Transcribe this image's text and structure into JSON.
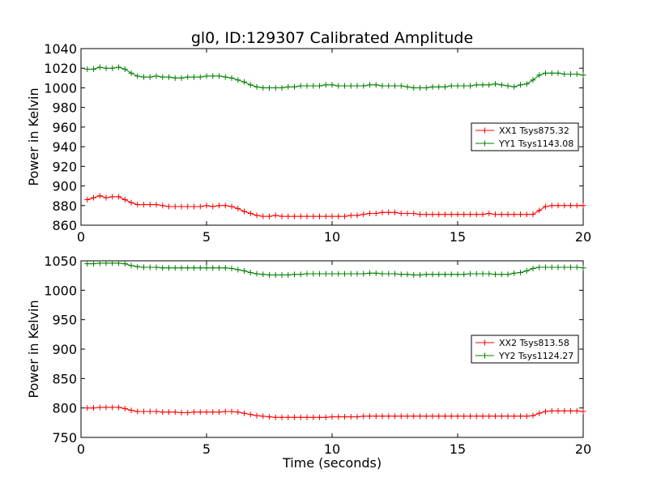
{
  "chart_data": {
    "title": "gl0, ID:129307 Calibrated Amplitude",
    "colors": {
      "xx": "#ff0000",
      "yy": "#008000"
    },
    "panels": [
      {
        "type": "line",
        "ylabel": "Power in Kelvin",
        "xlabel": "",
        "xlim": [
          0,
          20
        ],
        "ylim": [
          860,
          1040
        ],
        "xticks": [
          0,
          5,
          10,
          15,
          20
        ],
        "yticks": [
          860,
          880,
          900,
          920,
          940,
          960,
          980,
          1000,
          1020,
          1040
        ],
        "legend_position": "center-right",
        "series": [
          {
            "name": "XX1 Tsys875.32",
            "color_key": "xx",
            "x": [
              0.25,
              0.5,
              0.75,
              1.0,
              1.25,
              1.5,
              1.75,
              2.0,
              2.25,
              2.5,
              2.75,
              3.0,
              3.25,
              3.5,
              3.75,
              4.0,
              4.25,
              4.5,
              4.75,
              5.0,
              5.25,
              5.5,
              5.75,
              6.0,
              6.25,
              6.5,
              6.75,
              7.0,
              7.25,
              7.5,
              7.75,
              8.0,
              8.25,
              8.5,
              8.75,
              9.0,
              9.25,
              9.5,
              9.75,
              10.0,
              10.25,
              10.5,
              10.75,
              11.0,
              11.25,
              11.5,
              11.75,
              12.0,
              12.25,
              12.5,
              12.75,
              13.0,
              13.25,
              13.5,
              13.75,
              14.0,
              14.25,
              14.5,
              14.75,
              15.0,
              15.25,
              15.5,
              15.75,
              16.0,
              16.25,
              16.5,
              16.75,
              17.0,
              17.25,
              17.5,
              17.75,
              18.0,
              18.25,
              18.5,
              18.75,
              19.0,
              19.25,
              19.5,
              19.75,
              20.0
            ],
            "y": [
              886,
              888,
              890,
              888,
              889,
              889,
              886,
              883,
              881,
              881,
              881,
              881,
              880,
              879,
              879,
              879,
              879,
              879,
              879,
              880,
              879,
              880,
              880,
              879,
              877,
              874,
              872,
              870,
              869,
              869,
              870,
              869,
              869,
              869,
              869,
              869,
              869,
              869,
              869,
              869,
              869,
              869,
              870,
              870,
              871,
              872,
              872,
              873,
              873,
              873,
              872,
              872,
              872,
              871,
              871,
              871,
              871,
              871,
              871,
              871,
              871,
              871,
              871,
              871,
              872,
              871,
              871,
              871,
              871,
              871,
              871,
              871,
              875,
              879,
              880,
              880,
              880,
              880,
              880,
              880
            ]
          },
          {
            "name": "YY1 Tsys1143.08",
            "color_key": "yy",
            "x": [
              0.25,
              0.5,
              0.75,
              1.0,
              1.25,
              1.5,
              1.75,
              2.0,
              2.25,
              2.5,
              2.75,
              3.0,
              3.25,
              3.5,
              3.75,
              4.0,
              4.25,
              4.5,
              4.75,
              5.0,
              5.25,
              5.5,
              5.75,
              6.0,
              6.25,
              6.5,
              6.75,
              7.0,
              7.25,
              7.5,
              7.75,
              8.0,
              8.25,
              8.5,
              8.75,
              9.0,
              9.25,
              9.5,
              9.75,
              10.0,
              10.25,
              10.5,
              10.75,
              11.0,
              11.25,
              11.5,
              11.75,
              12.0,
              12.25,
              12.5,
              12.75,
              13.0,
              13.25,
              13.5,
              13.75,
              14.0,
              14.25,
              14.5,
              14.75,
              15.0,
              15.25,
              15.5,
              15.75,
              16.0,
              16.25,
              16.5,
              16.75,
              17.0,
              17.25,
              17.5,
              17.75,
              18.0,
              18.25,
              18.5,
              18.75,
              19.0,
              19.25,
              19.5,
              19.75,
              20.0
            ],
            "y": [
              1019,
              1019,
              1021,
              1020,
              1020,
              1021,
              1019,
              1015,
              1012,
              1011,
              1011,
              1012,
              1011,
              1011,
              1010,
              1010,
              1011,
              1011,
              1011,
              1012,
              1012,
              1012,
              1011,
              1010,
              1008,
              1006,
              1003,
              1001,
              1000,
              1000,
              1000,
              1000,
              1001,
              1001,
              1002,
              1002,
              1002,
              1002,
              1003,
              1003,
              1002,
              1002,
              1002,
              1002,
              1002,
              1003,
              1003,
              1002,
              1002,
              1002,
              1002,
              1001,
              1000,
              1000,
              1000,
              1001,
              1001,
              1001,
              1002,
              1002,
              1002,
              1002,
              1003,
              1003,
              1003,
              1004,
              1003,
              1002,
              1001,
              1003,
              1004,
              1008,
              1013,
              1015,
              1015,
              1015,
              1014,
              1014,
              1014,
              1013
            ]
          }
        ]
      },
      {
        "type": "line",
        "ylabel": "Power in Kelvin",
        "xlabel": "Time (seconds)",
        "xlim": [
          0,
          20
        ],
        "ylim": [
          750,
          1050
        ],
        "xticks": [
          0,
          5,
          10,
          15,
          20
        ],
        "yticks": [
          750,
          800,
          850,
          900,
          950,
          1000,
          1050
        ],
        "legend_position": "center-right",
        "series": [
          {
            "name": "XX2 Tsys813.58",
            "color_key": "xx",
            "x": [
              0.25,
              0.5,
              0.75,
              1.0,
              1.25,
              1.5,
              1.75,
              2.0,
              2.25,
              2.5,
              2.75,
              3.0,
              3.25,
              3.5,
              3.75,
              4.0,
              4.25,
              4.5,
              4.75,
              5.0,
              5.25,
              5.5,
              5.75,
              6.0,
              6.25,
              6.5,
              6.75,
              7.0,
              7.25,
              7.5,
              7.75,
              8.0,
              8.25,
              8.5,
              8.75,
              9.0,
              9.25,
              9.5,
              9.75,
              10.0,
              10.25,
              10.5,
              10.75,
              11.0,
              11.25,
              11.5,
              11.75,
              12.0,
              12.25,
              12.5,
              12.75,
              13.0,
              13.25,
              13.5,
              13.75,
              14.0,
              14.25,
              14.5,
              14.75,
              15.0,
              15.25,
              15.5,
              15.75,
              16.0,
              16.25,
              16.5,
              16.75,
              17.0,
              17.25,
              17.5,
              17.75,
              18.0,
              18.25,
              18.5,
              18.75,
              19.0,
              19.25,
              19.5,
              19.75,
              20.0
            ],
            "y": [
              800,
              800,
              801,
              801,
              801,
              801,
              799,
              796,
              794,
              794,
              794,
              794,
              793,
              793,
              793,
              792,
              792,
              793,
              793,
              793,
              793,
              793,
              794,
              794,
              793,
              791,
              789,
              787,
              786,
              785,
              784,
              784,
              784,
              784,
              784,
              784,
              784,
              784,
              784,
              785,
              785,
              785,
              785,
              785,
              786,
              786,
              786,
              786,
              786,
              786,
              786,
              786,
              786,
              786,
              786,
              786,
              786,
              786,
              786,
              786,
              786,
              786,
              786,
              786,
              786,
              786,
              786,
              786,
              786,
              786,
              786,
              787,
              791,
              794,
              795,
              795,
              795,
              795,
              795,
              794
            ]
          },
          {
            "name": "YY2 Tsys1124.27",
            "color_key": "yy",
            "x": [
              0.25,
              0.5,
              0.75,
              1.0,
              1.25,
              1.5,
              1.75,
              2.0,
              2.25,
              2.5,
              2.75,
              3.0,
              3.25,
              3.5,
              3.75,
              4.0,
              4.25,
              4.5,
              4.75,
              5.0,
              5.25,
              5.5,
              5.75,
              6.0,
              6.25,
              6.5,
              6.75,
              7.0,
              7.25,
              7.5,
              7.75,
              8.0,
              8.25,
              8.5,
              8.75,
              9.0,
              9.25,
              9.5,
              9.75,
              10.0,
              10.25,
              10.5,
              10.75,
              11.0,
              11.25,
              11.5,
              11.75,
              12.0,
              12.25,
              12.5,
              12.75,
              13.0,
              13.25,
              13.5,
              13.75,
              14.0,
              14.25,
              14.5,
              14.75,
              15.0,
              15.25,
              15.5,
              15.75,
              16.0,
              16.25,
              16.5,
              16.75,
              17.0,
              17.25,
              17.5,
              17.75,
              18.0,
              18.25,
              18.5,
              18.75,
              19.0,
              19.25,
              19.5,
              19.75,
              20.0
            ],
            "y": [
              1045,
              1045,
              1046,
              1046,
              1046,
              1046,
              1045,
              1042,
              1040,
              1039,
              1039,
              1039,
              1038,
              1038,
              1038,
              1038,
              1038,
              1038,
              1038,
              1038,
              1038,
              1038,
              1038,
              1037,
              1035,
              1033,
              1030,
              1028,
              1027,
              1026,
              1026,
              1026,
              1026,
              1027,
              1027,
              1028,
              1028,
              1028,
              1028,
              1028,
              1028,
              1028,
              1028,
              1028,
              1028,
              1029,
              1029,
              1028,
              1028,
              1028,
              1027,
              1027,
              1026,
              1026,
              1027,
              1027,
              1027,
              1027,
              1027,
              1027,
              1027,
              1028,
              1028,
              1028,
              1028,
              1027,
              1027,
              1027,
              1029,
              1030,
              1033,
              1037,
              1039,
              1039,
              1039,
              1039,
              1039,
              1039,
              1039,
              1038
            ]
          }
        ]
      }
    ]
  }
}
